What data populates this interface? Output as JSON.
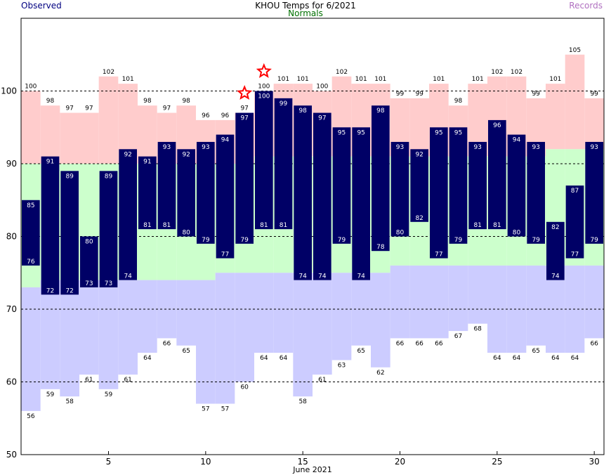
{
  "header": {
    "title": "KHOU Temps for 6/2021",
    "observed_label": "Observed",
    "normals_label": "Normals",
    "records_label": "Records"
  },
  "colors": {
    "record_band": "#ffcccc",
    "normal_band": "#ccffcc",
    "record_low_band": "#ccccff",
    "observed_bar": "#000066",
    "record_star": "#ff0000"
  },
  "chart_data": {
    "type": "bar",
    "title": "KHOU Temps for 6/2021",
    "xlabel": "June 2021",
    "ylabel": "",
    "xlim": [
      0.5,
      30.5
    ],
    "ylim": [
      50,
      110
    ],
    "x_ticks": [
      5,
      10,
      15,
      20,
      25,
      30
    ],
    "y_ticks": [
      50,
      60,
      70,
      80,
      90,
      100
    ],
    "grid": "dashed at 60, 70, 80, 90, 100",
    "days": [
      1,
      2,
      3,
      4,
      5,
      6,
      7,
      8,
      9,
      10,
      11,
      12,
      13,
      14,
      15,
      16,
      17,
      18,
      19,
      20,
      21,
      22,
      23,
      24,
      25,
      26,
      27,
      28,
      29,
      30
    ],
    "series": [
      {
        "name": "Observed",
        "kind": "high",
        "values": [
          85,
          91,
          89,
          80,
          89,
          92,
          91,
          93,
          92,
          93,
          94,
          97,
          100,
          99,
          98,
          97,
          95,
          95,
          98,
          93,
          92,
          95,
          95,
          93,
          96,
          94,
          93,
          82,
          87,
          93
        ]
      },
      {
        "name": "Observed",
        "kind": "low",
        "values": [
          76,
          72,
          72,
          73,
          73,
          74,
          81,
          81,
          80,
          79,
          77,
          79,
          81,
          81,
          74,
          74,
          79,
          74,
          78,
          80,
          82,
          77,
          79,
          81,
          81,
          80,
          79,
          74,
          77,
          79
        ]
      },
      {
        "name": "Normals",
        "kind": "high",
        "values": [
          90,
          90,
          90,
          90,
          90,
          90,
          90,
          90,
          90,
          90,
          90,
          90,
          91,
          91,
          91,
          91,
          91,
          91,
          91,
          91,
          91,
          91,
          91,
          91,
          91,
          91,
          91,
          92,
          92,
          92
        ]
      },
      {
        "name": "Normals",
        "kind": "low",
        "values": [
          73,
          74,
          74,
          74,
          74,
          74,
          74,
          74,
          74,
          74,
          75,
          75,
          75,
          75,
          75,
          75,
          75,
          75,
          75,
          76,
          76,
          76,
          76,
          76,
          76,
          76,
          76,
          76,
          76,
          76
        ]
      },
      {
        "name": "Records",
        "kind": "high",
        "values": [
          100,
          98,
          97,
          97,
          102,
          101,
          98,
          97,
          98,
          96,
          96,
          97,
          100,
          101,
          101,
          100,
          102,
          101,
          101,
          99,
          99,
          101,
          98,
          101,
          102,
          102,
          99,
          101,
          105,
          99
        ]
      },
      {
        "name": "Records",
        "kind": "low",
        "values": [
          56,
          59,
          58,
          61,
          59,
          61,
          64,
          66,
          65,
          57,
          57,
          60,
          64,
          64,
          58,
          61,
          63,
          65,
          62,
          66,
          66,
          66,
          67,
          68,
          64,
          64,
          65,
          64,
          64,
          66
        ]
      }
    ],
    "annotations": [
      {
        "type": "record-star",
        "day": 12,
        "value": 97
      },
      {
        "type": "record-star",
        "day": 13,
        "value": 100
      }
    ]
  }
}
